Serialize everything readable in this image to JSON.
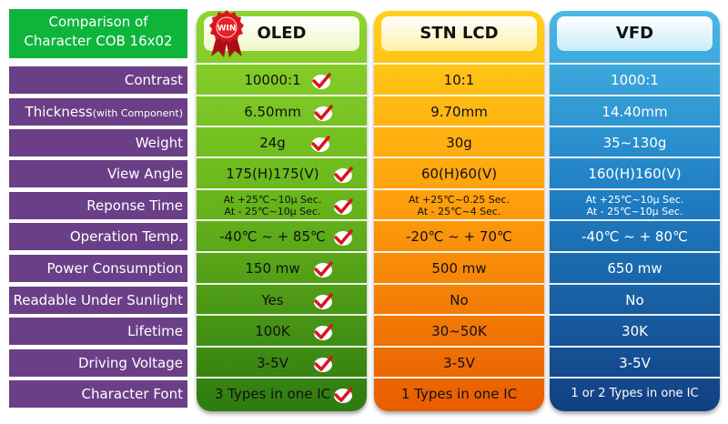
{
  "corner_title": [
    "Comparison of",
    "Character COB 16x02"
  ],
  "rows": [
    {
      "label": "Contrast"
    },
    {
      "label": "Thickness",
      "label_small": "(with Component)"
    },
    {
      "label": "Weight"
    },
    {
      "label": "View Angle"
    },
    {
      "label": "Reponse Time"
    },
    {
      "label": "Operation Temp."
    },
    {
      "label": "Power Consumption"
    },
    {
      "label": "Readable Under Sunlight"
    },
    {
      "label": "Lifetime"
    },
    {
      "label": "Driving Voltage"
    },
    {
      "label": "Character Font"
    }
  ],
  "columns": [
    {
      "name": "OLED",
      "badge": "WIN",
      "values": [
        "10000:1",
        "6.50mm",
        "24g",
        "175(H)175(V)",
        [
          "At +25℃~10μ Sec.",
          "At - 25℃~10μ Sec."
        ],
        "-40℃ ~ + 85℃",
        "150 mw",
        "Yes",
        "100K",
        "3-5V",
        "3 Types in one IC"
      ]
    },
    {
      "name": "STN LCD",
      "values": [
        "10:1",
        "9.70mm",
        "30g",
        "60(H)60(V)",
        [
          "At +25℃~0.25 Sec.",
          "At - 25℃~4 Sec."
        ],
        "-20℃ ~ + 70℃",
        "500 mw",
        "No",
        "30~50K",
        "3-5V",
        "1 Types in one IC"
      ]
    },
    {
      "name": "VFD",
      "values": [
        "1000:1",
        "14.40mm",
        "35~130g",
        "160(H)160(V)",
        [
          "At +25℃~10μ Sec.",
          "At - 25℃~10μ Sec."
        ],
        "-40℃ ~ + 80℃",
        "650 mw",
        "No",
        "30K",
        "3-5V",
        "1 or 2 Types in one IC"
      ]
    }
  ],
  "colors": {
    "label_bg": "#6b3f87",
    "corner_bg": "#0eb53b",
    "check": "#d8161c",
    "badge": "#d8161c"
  }
}
